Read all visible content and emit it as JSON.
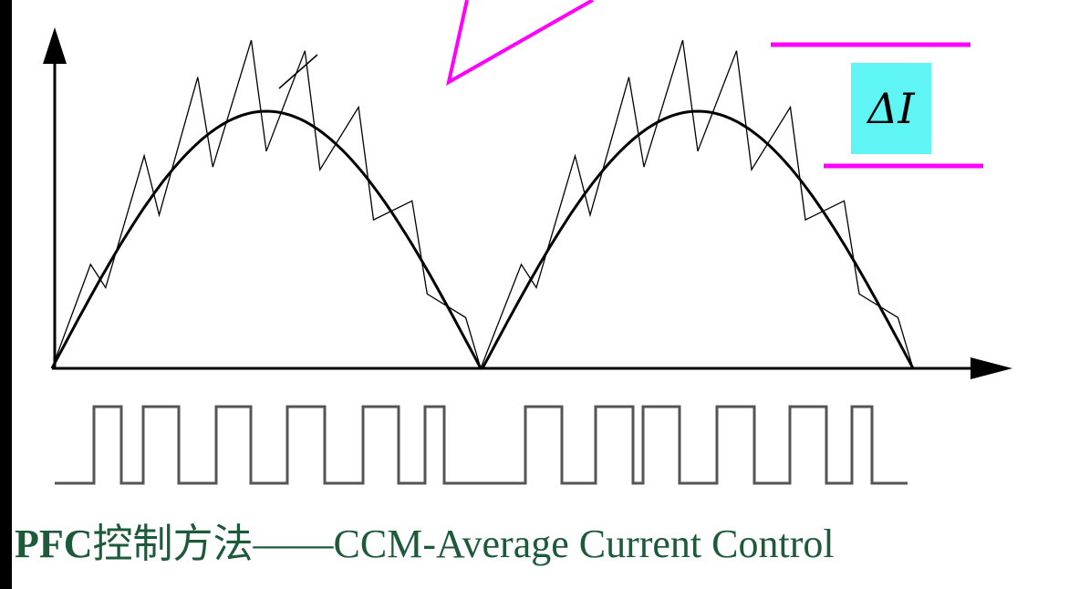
{
  "delta_label": "ΔI",
  "caption": {
    "prefix": "PFC",
    "chinese": "控制方法——",
    "english": "CCM-Average Current Control"
  },
  "colors": {
    "background": "#000000",
    "panel": "#ffffff",
    "magenta": "#ff00ff",
    "delta_fill": "#5ff5f5",
    "caption_text": "#1d5a3a",
    "trace": "#000000",
    "pulse": "#555555"
  },
  "icons": {
    "y_axis_arrow": "arrow-up-icon",
    "x_axis_arrow": "arrow-right-icon"
  }
}
